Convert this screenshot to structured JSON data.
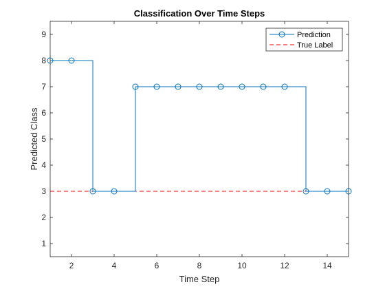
{
  "chart_data": {
    "type": "line",
    "title": "Classification Over Time Steps",
    "xlabel": "Time Step",
    "ylabel": "Predicted Class",
    "xlim": [
      1,
      15
    ],
    "ylim": [
      0.5,
      9.5
    ],
    "xticks": [
      2,
      4,
      6,
      8,
      10,
      12,
      14
    ],
    "yticks": [
      1,
      2,
      3,
      4,
      5,
      6,
      7,
      8,
      9
    ],
    "grid": false,
    "legend_position": "top-right",
    "series": [
      {
        "name": "Prediction",
        "style": "stairs-with-circle-markers",
        "color": "#0072BD",
        "x": [
          1,
          2,
          3,
          4,
          5,
          6,
          7,
          8,
          9,
          10,
          11,
          12,
          13,
          14,
          15
        ],
        "y": [
          8,
          8,
          3,
          3,
          7,
          7,
          7,
          7,
          7,
          7,
          7,
          7,
          3,
          3,
          3
        ]
      },
      {
        "name": "True Label",
        "style": "dashed",
        "color": "#FF0000",
        "x": [
          1,
          15
        ],
        "y": [
          3,
          3
        ]
      }
    ]
  }
}
